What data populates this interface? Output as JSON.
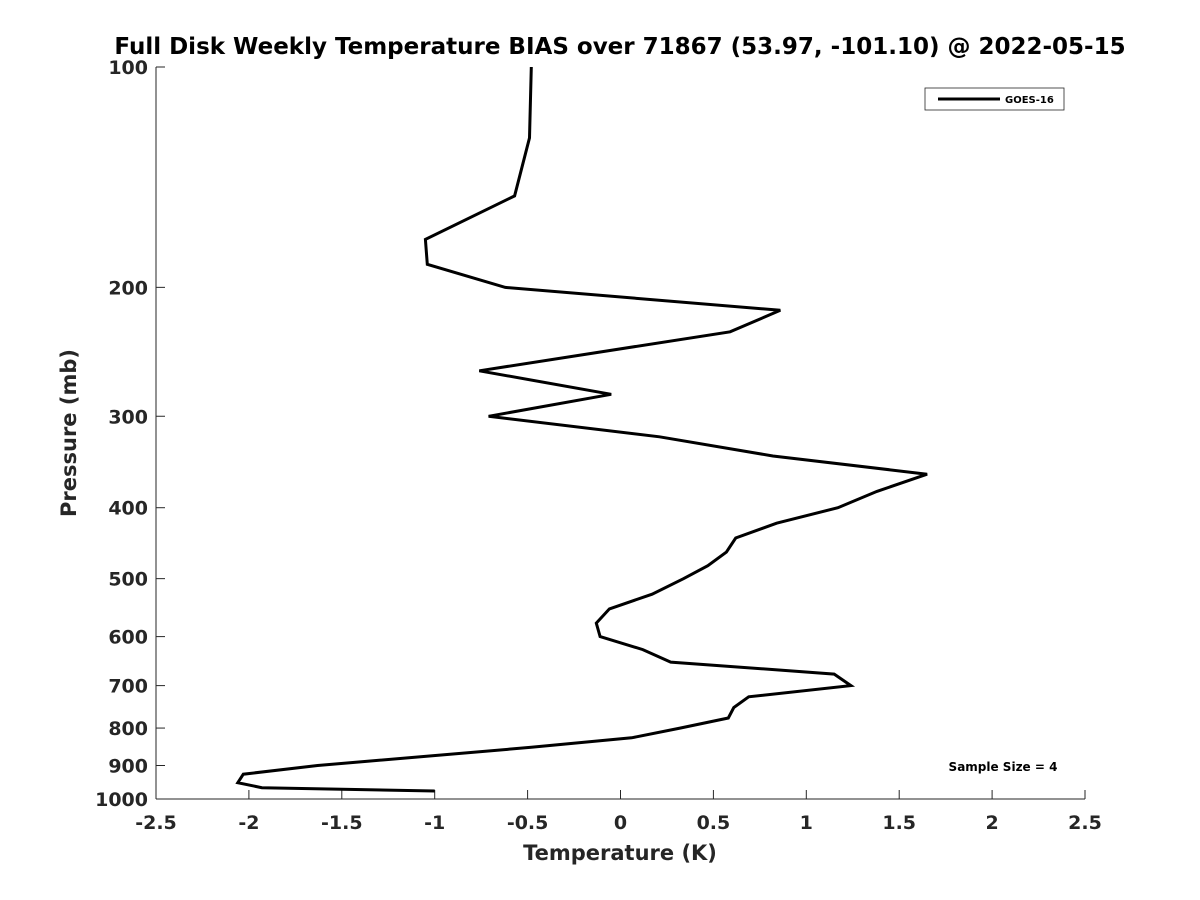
{
  "chart_data": {
    "type": "line",
    "title": "Full Disk Weekly Temperature BIAS over 71867 (53.97, -101.10) @ 2022-05-15",
    "xlabel": "Temperature (K)",
    "ylabel": "Pressure (mb)",
    "xlim": [
      -2.5,
      2.5
    ],
    "ylim": [
      100,
      1000
    ],
    "y_scale": "log",
    "y_reversed": true,
    "x_ticks": [
      -2.5,
      -2,
      -1.5,
      -1,
      -0.5,
      0,
      0.5,
      1,
      1.5,
      2,
      2.5
    ],
    "x_tick_labels": [
      "-2.5",
      "-2",
      "-1.5",
      "-1",
      "-0.5",
      "0",
      "0.5",
      "1",
      "1.5",
      "2",
      "2.5"
    ],
    "y_ticks": [
      100,
      200,
      300,
      400,
      500,
      600,
      700,
      800,
      900,
      1000
    ],
    "y_tick_labels": [
      "100",
      "200",
      "300",
      "400",
      "500",
      "600",
      "700",
      "800",
      "900",
      "1000"
    ],
    "grid": false,
    "legend_position": "top-right",
    "series": [
      {
        "name": "GOES-16",
        "color": "#000000",
        "x": [
          -0.48,
          -0.49,
          -0.57,
          -1.05,
          -1.04,
          -0.62,
          0.86,
          0.59,
          -0.76,
          -0.05,
          -0.71,
          0.21,
          0.82,
          1.65,
          1.38,
          1.17,
          0.84,
          0.62,
          0.57,
          0.47,
          0.34,
          0.17,
          -0.06,
          -0.13,
          -0.11,
          0.12,
          0.27,
          1.15,
          1.24,
          0.69,
          0.61,
          0.58,
          0.32,
          0.06,
          -0.48,
          -1.06,
          -1.63,
          -2.03,
          -2.06,
          -1.93,
          -1.0
        ],
        "y": [
          100,
          125,
          150,
          172,
          186,
          200,
          215,
          230,
          260,
          280,
          300,
          320,
          340,
          360,
          380,
          400,
          420,
          440,
          460,
          480,
          500,
          525,
          550,
          575,
          600,
          625,
          650,
          675,
          700,
          725,
          750,
          775,
          800,
          825,
          850,
          875,
          900,
          925,
          950,
          965,
          975
        ]
      }
    ],
    "annotations": [
      {
        "text": "Sample Size = 4",
        "position": "bottom-right"
      }
    ]
  }
}
